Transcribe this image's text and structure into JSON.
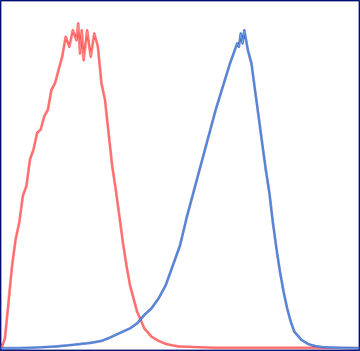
{
  "chart_data": {
    "type": "line",
    "title": "",
    "xlabel": "",
    "ylabel": "",
    "xlim": [
      0,
      1000
    ],
    "ylim": [
      0,
      100
    ],
    "grid": false,
    "legend": "none",
    "frame_color": "#1a237e",
    "series": [
      {
        "color": "#ff3b3b",
        "highlight": "#ffb3b3",
        "x": [
          0,
          10,
          20,
          30,
          40,
          50,
          60,
          70,
          80,
          90,
          100,
          110,
          120,
          130,
          140,
          150,
          160,
          170,
          180,
          190,
          200,
          210,
          215,
          220,
          225,
          230,
          240,
          250,
          260,
          270,
          280,
          290,
          300,
          310,
          320,
          330,
          340,
          350,
          360,
          380,
          400,
          420,
          440,
          460,
          480,
          500,
          550,
          600,
          650,
          700,
          750,
          800,
          850,
          900,
          950,
          1000
        ],
        "y": [
          0,
          3,
          14,
          25,
          33,
          38,
          46,
          49,
          57,
          60,
          65,
          66,
          70,
          72,
          78,
          80,
          84,
          88,
          94,
          91,
          96,
          93,
          98,
          89,
          96,
          87,
          96,
          88,
          95,
          91,
          80,
          75,
          65,
          55,
          48,
          40,
          32,
          25,
          19,
          11,
          6,
          3.5,
          2.2,
          1.3,
          0.8,
          0.5,
          0.3,
          0.1,
          0.1,
          0.1,
          0.1,
          0.1,
          0.1,
          0.1,
          0.1,
          0
        ]
      },
      {
        "color": "#2a4bc0",
        "highlight": "#8ecfef",
        "x": [
          0,
          50,
          100,
          150,
          200,
          250,
          280,
          300,
          320,
          340,
          360,
          380,
          400,
          420,
          440,
          460,
          480,
          500,
          520,
          540,
          560,
          580,
          600,
          620,
          640,
          650,
          660,
          665,
          670,
          675,
          680,
          685,
          690,
          700,
          710,
          720,
          730,
          740,
          750,
          760,
          770,
          780,
          790,
          800,
          810,
          820,
          840,
          860,
          880,
          900,
          950,
          1000
        ],
        "y": [
          0,
          0,
          0.2,
          0.5,
          1,
          1.6,
          2.2,
          3,
          4,
          5,
          6,
          7.5,
          10,
          12,
          15,
          19,
          25,
          31,
          40,
          48,
          56,
          64,
          72,
          79,
          86,
          89,
          92,
          91,
          95,
          92,
          96,
          93,
          90,
          86,
          78,
          70,
          62,
          54,
          47,
          38,
          30,
          23,
          17,
          12,
          8,
          5,
          2.5,
          1.2,
          0.6,
          0.3,
          0.1,
          0
        ]
      }
    ]
  }
}
